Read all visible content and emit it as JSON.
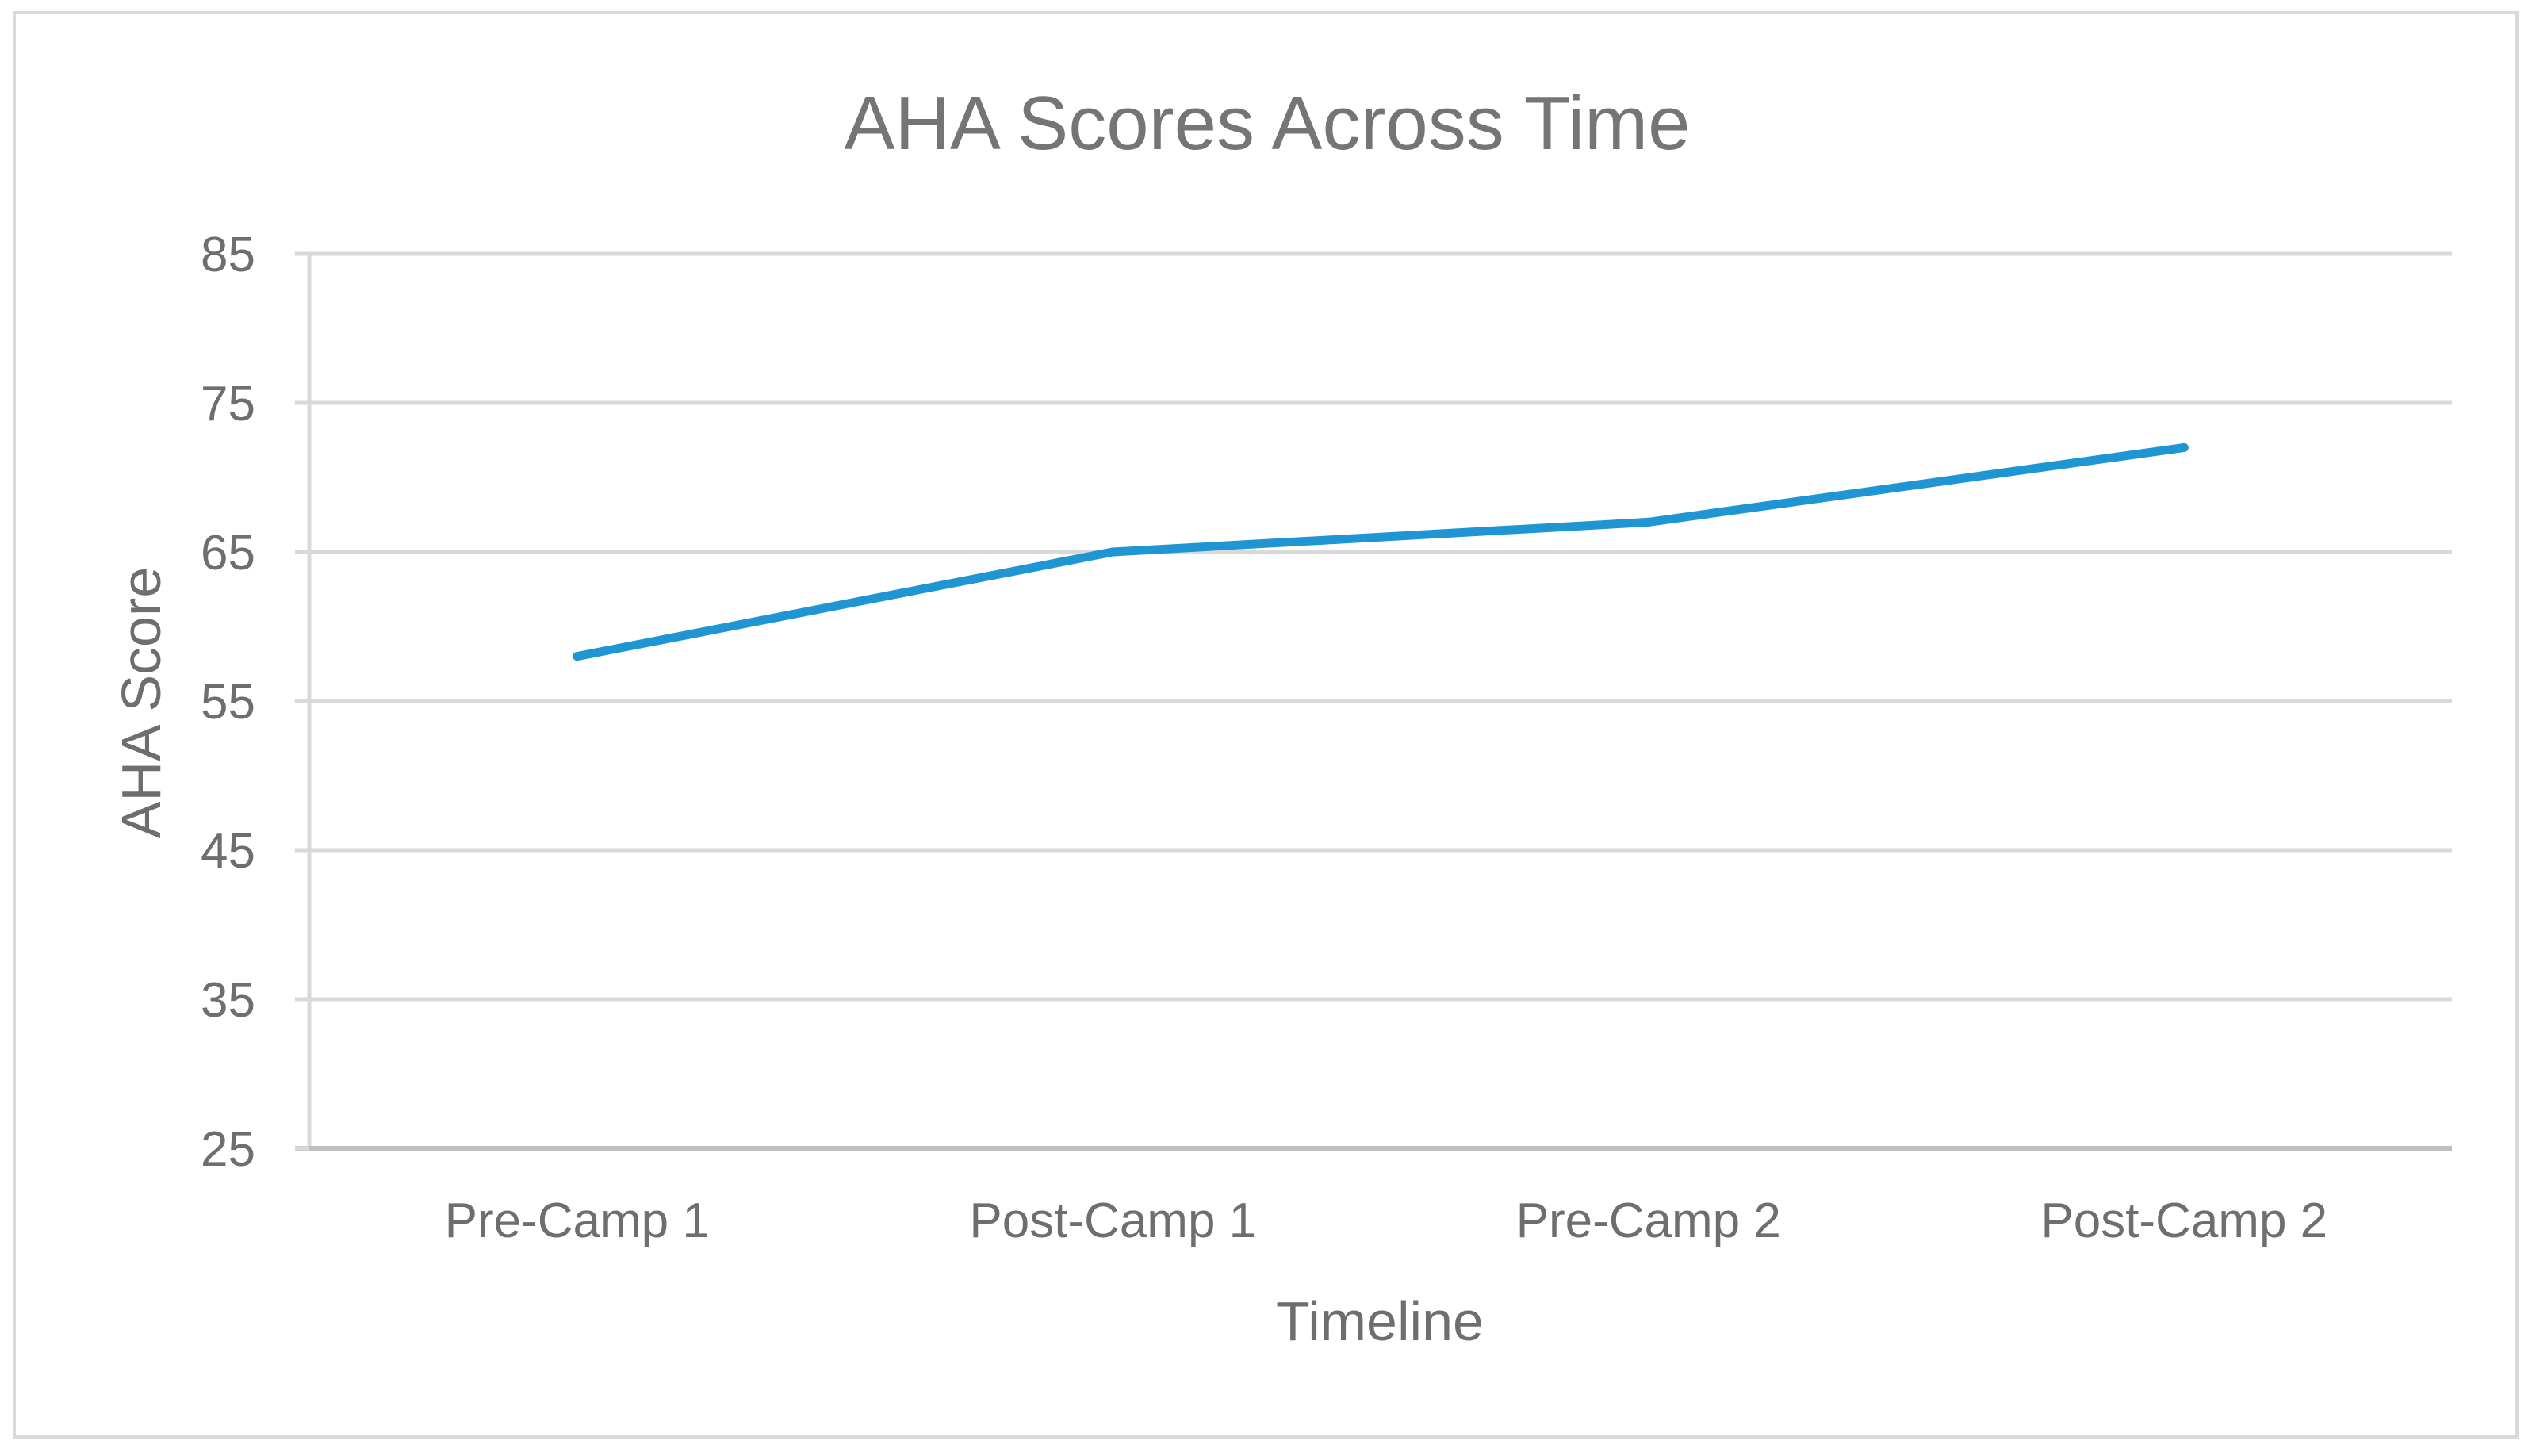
{
  "chart_data": {
    "type": "line",
    "title": "AHA Scores Across Time",
    "xlabel": "Timeline",
    "ylabel": "AHA Score",
    "categories": [
      "Pre-Camp 1",
      "Post-Camp 1",
      "Pre-Camp 2",
      "Post-Camp 2"
    ],
    "series": [
      {
        "values": [
          58,
          65,
          67,
          72
        ],
        "color": "#1f96d3"
      }
    ],
    "ylim": [
      25,
      85
    ],
    "yticks": [
      25,
      35,
      45,
      55,
      65,
      75,
      85
    ],
    "grid": true,
    "legend": "none"
  }
}
